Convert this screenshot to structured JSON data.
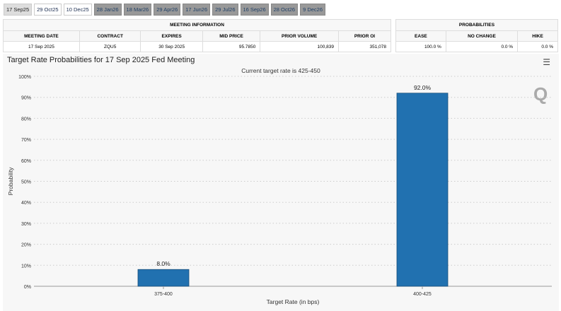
{
  "tabs": [
    {
      "label": "17 Sep25",
      "state": "active"
    },
    {
      "label": "29 Oct25",
      "state": "normal"
    },
    {
      "label": "10 Dec25",
      "state": "normal"
    },
    {
      "label": "28 Jan26",
      "state": "dis"
    },
    {
      "label": "18 Mar26",
      "state": "dis"
    },
    {
      "label": "29 Apr26",
      "state": "dis"
    },
    {
      "label": "17 Jun26",
      "state": "dis"
    },
    {
      "label": "29 Jul26",
      "state": "dis"
    },
    {
      "label": "16 Sep26",
      "state": "dis"
    },
    {
      "label": "28 Oct26",
      "state": "dis"
    },
    {
      "label": "9 Dec26",
      "state": "dis"
    }
  ],
  "meeting": {
    "title": "MEETING INFORMATION",
    "headers": [
      "MEETING DATE",
      "CONTRACT",
      "EXPIRES",
      "MID PRICE",
      "PRIOR VOLUME",
      "PRIOR OI"
    ],
    "row": [
      "17 Sep 2025",
      "ZQU5",
      "30 Sep 2025",
      "95.7850",
      "100,839",
      "351,078"
    ]
  },
  "probabilities": {
    "title": "PROBABILITIES",
    "headers": [
      "EASE",
      "NO CHANGE",
      "HIKE"
    ],
    "row": [
      "100.0 %",
      "0.0 %",
      "0.0 %"
    ]
  },
  "chart": {
    "title": "Target Rate Probabilities for 17 Sep 2025 Fed Meeting",
    "menu_icon": "hamburger-icon",
    "watermark": "Q"
  },
  "chart_data": {
    "type": "bar",
    "title": "Target Rate Probabilities for 17 Sep 2025 Fed Meeting",
    "subtitle": "Current target rate is 425-450",
    "categories": [
      "375-400",
      "400-425"
    ],
    "values": [
      8.0,
      92.0
    ],
    "data_labels": [
      "8.0%",
      "92.0%"
    ],
    "xlabel": "Target Rate (in bps)",
    "ylabel": "Probability",
    "ylim": [
      0,
      100
    ],
    "yticks": [
      "0%",
      "10%",
      "20%",
      "30%",
      "40%",
      "50%",
      "60%",
      "70%",
      "80%",
      "90%",
      "100%"
    ],
    "color": "#2171b0",
    "grid": true
  }
}
